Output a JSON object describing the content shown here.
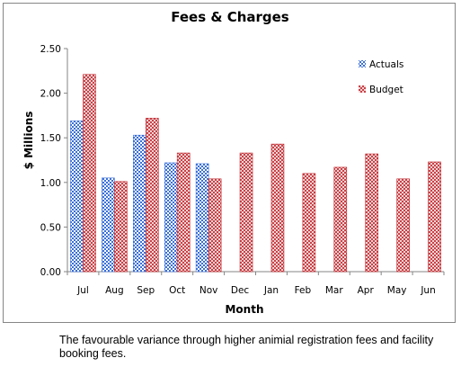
{
  "chart_data": {
    "type": "bar",
    "title": "Fees & Charges",
    "xlabel": "Month",
    "ylabel": "$ Millions",
    "categories": [
      "Jul",
      "Aug",
      "Sep",
      "Oct",
      "Nov",
      "Dec",
      "Jan",
      "Feb",
      "Mar",
      "Apr",
      "May",
      "Jun"
    ],
    "series": [
      {
        "name": "Actuals",
        "color": "#3a6fd8",
        "pattern": "checker",
        "values": [
          1.69,
          1.05,
          1.53,
          1.22,
          1.21,
          null,
          null,
          null,
          null,
          null,
          null,
          null
        ]
      },
      {
        "name": "Budget",
        "color": "#c0252b",
        "pattern": "crosshatch",
        "values": [
          2.21,
          1.01,
          1.72,
          1.33,
          1.04,
          1.33,
          1.43,
          1.1,
          1.17,
          1.32,
          1.04,
          1.23
        ]
      }
    ],
    "ylim": [
      0,
      2.5
    ],
    "yticks": [
      "0.00",
      "0.50",
      "1.00",
      "1.50",
      "2.00",
      "2.50"
    ],
    "grid": false,
    "legend_position": "top-right"
  },
  "caption": "The favourable variance through higher animial registration fees and facility booking fees."
}
